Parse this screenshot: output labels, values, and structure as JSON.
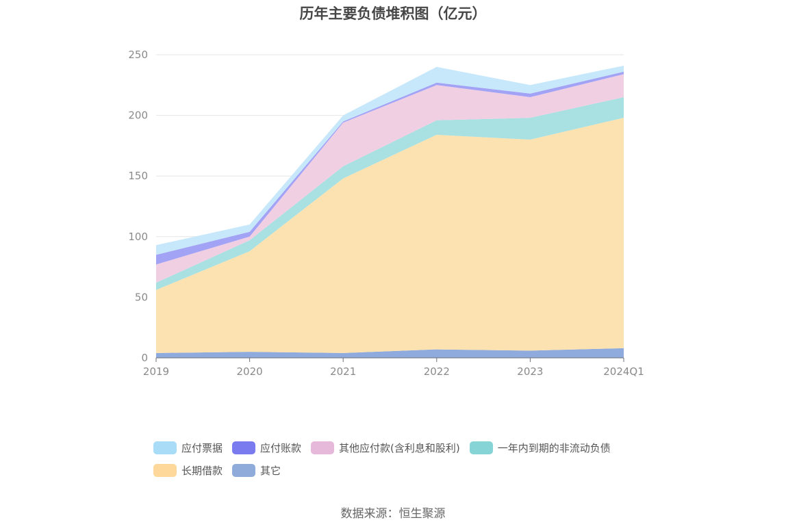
{
  "title": "历年主要负债堆积图（亿元）",
  "source": "数据来源：恒生聚源",
  "chart_data": {
    "type": "area",
    "stacked": true,
    "categories": [
      "2019",
      "2020",
      "2021",
      "2022",
      "2023",
      "2024Q1"
    ],
    "ylim": [
      0,
      250
    ],
    "yticks": [
      0,
      50,
      100,
      150,
      200,
      250
    ],
    "grid": true,
    "legend_position": "bottom",
    "series": [
      {
        "name": "其它",
        "color": "#8faadc",
        "values": [
          4,
          5,
          4,
          7,
          6,
          8
        ]
      },
      {
        "name": "长期借款",
        "color": "#fde2b1",
        "values": [
          52,
          83,
          144,
          177,
          174,
          190
        ]
      },
      {
        "name": "一年内到期的非流动负债",
        "color": "#a9e0e2",
        "values": [
          6,
          9,
          10,
          12,
          18,
          17
        ]
      },
      {
        "name": "其他应付款(含利息和股利)",
        "color": "#f0cfe3",
        "values": [
          15,
          3,
          36,
          29,
          17,
          19
        ]
      },
      {
        "name": "应付账款",
        "color": "#a3a3f6",
        "values": [
          8,
          4,
          1,
          2,
          3,
          2
        ]
      },
      {
        "name": "应付票据",
        "color": "#c7e8fa",
        "values": [
          8,
          6,
          5,
          13,
          7,
          5
        ]
      }
    ]
  },
  "legend": [
    [
      {
        "name": "应付票据",
        "color": "#a9dcf7"
      },
      {
        "name": "应付账款",
        "color": "#7b7bf0"
      },
      {
        "name": "其他应付款(含利息和股利)",
        "color": "#e6b8d9"
      },
      {
        "name": "一年内到期的非流动负债",
        "color": "#86d4d6"
      }
    ],
    [
      {
        "name": "长期借款",
        "color": "#fdd89a"
      },
      {
        "name": "其它",
        "color": "#8eabd9"
      }
    ]
  ]
}
